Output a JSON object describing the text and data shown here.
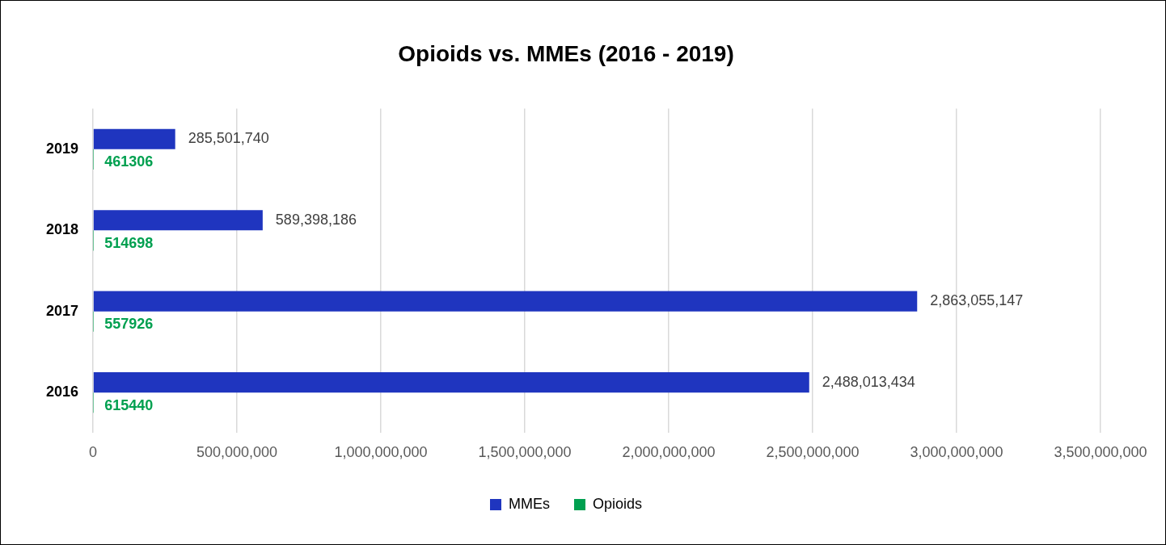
{
  "chart_data": {
    "type": "bar",
    "orientation": "horizontal",
    "title": "Opioids vs. MMEs (2016 - 2019)",
    "categories": [
      "2019",
      "2018",
      "2017",
      "2016"
    ],
    "series": [
      {
        "name": "MMEs",
        "color": "#1f35bf",
        "values": [
          285501740,
          589398186,
          2863055147,
          2488013434
        ],
        "value_labels": [
          "285,501,740",
          "589,398,186",
          "2,863,055,147",
          "2,488,013,434"
        ]
      },
      {
        "name": "Opioids",
        "color": "#00a050",
        "values": [
          461306,
          514698,
          557926,
          615440
        ],
        "value_labels": [
          "461306",
          "514698",
          "557926",
          "615440"
        ]
      }
    ],
    "xlim": [
      0,
      3500000000
    ],
    "xticks": [
      {
        "value": 0,
        "label": "0"
      },
      {
        "value": 500000000,
        "label": "500,000,000"
      },
      {
        "value": 1000000000,
        "label": "1,000,000,000"
      },
      {
        "value": 1500000000,
        "label": "1,500,000,000"
      },
      {
        "value": 2000000000,
        "label": "2,000,000,000"
      },
      {
        "value": 2500000000,
        "label": "2,500,000,000"
      },
      {
        "value": 3000000000,
        "label": "3,000,000,000"
      },
      {
        "value": 3500000000,
        "label": "3,500,000,000"
      }
    ],
    "grid": "x",
    "legend": "bottom"
  }
}
